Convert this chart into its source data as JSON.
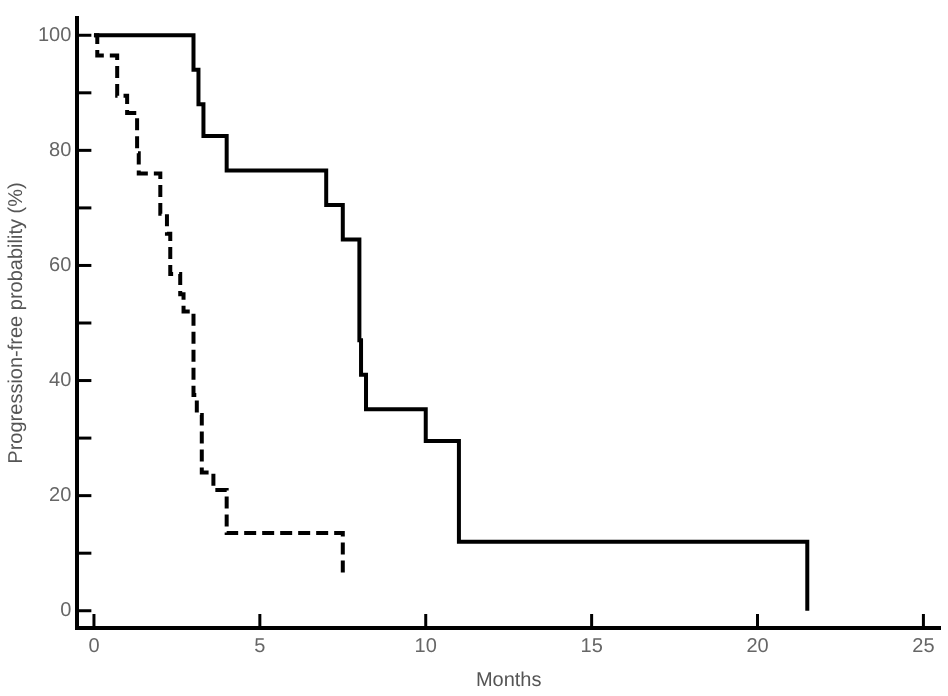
{
  "chart_data": {
    "type": "step",
    "xlabel": "Months",
    "ylabel": "Progression-free probability (%)",
    "xlim": [
      -0.5,
      25.5
    ],
    "ylim": [
      -3,
      103
    ],
    "xticks": [
      0,
      5,
      10,
      15,
      20,
      25
    ],
    "yticks": [
      0,
      {
        "value": 10,
        "label": null
      },
      20,
      {
        "value": 30,
        "label": null
      },
      40,
      {
        "value": 50,
        "label": null
      },
      60,
      {
        "value": 70,
        "label": null
      },
      80,
      {
        "value": 90,
        "label": null
      },
      100
    ],
    "series": [
      {
        "color": "#000000",
        "line_style": "solid",
        "x": [
          0,
          3.0,
          3.15,
          3.3,
          4.0,
          7.0,
          7.5,
          8.0,
          8.05,
          8.2,
          10.0,
          11.0,
          21.5
        ],
        "values": [
          100,
          94,
          88,
          82.5,
          76.5,
          70.5,
          64.5,
          47,
          41,
          35,
          29.5,
          12,
          0
        ]
      },
      {
        "color": "#000000",
        "line_style": "dashed",
        "x": [
          0,
          0.1,
          0.7,
          1.0,
          1.3,
          1.35,
          2.0,
          2.2,
          2.3,
          2.6,
          2.7,
          3.0,
          3.1,
          3.25,
          3.6,
          4.0,
          7.5
        ],
        "values": [
          100,
          96.5,
          89.5,
          86.5,
          79.5,
          76,
          69,
          65.5,
          58.5,
          55,
          52,
          37.5,
          34,
          24,
          21,
          13.5,
          6.5
        ]
      }
    ]
  }
}
